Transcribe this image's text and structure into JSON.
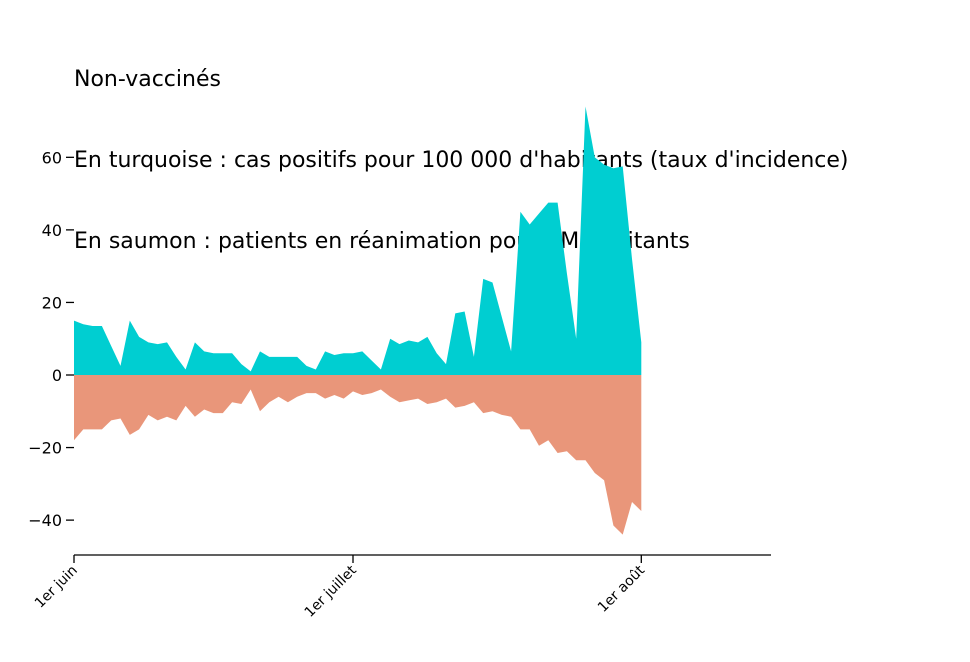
{
  "chart_data": {
    "type": "area",
    "title_lines": [
      "Non-vaccinés",
      "En turquoise : cas positifs pour 100 000 d'habitants (taux d'incidence)",
      "En saumon : patients en réanimation pour 1M habitants"
    ],
    "xlabel": "",
    "ylabel": "",
    "ylim": [
      -49.6,
      74.5
    ],
    "xlim_days": [
      0,
      75
    ],
    "yticks": [
      {
        "value": 60,
        "label": "60"
      },
      {
        "value": 40,
        "label": "40"
      },
      {
        "value": 20,
        "label": "20"
      },
      {
        "value": 0,
        "label": "0"
      },
      {
        "value": -20,
        "label": "−20"
      },
      {
        "value": -40,
        "label": "−40"
      }
    ],
    "xticks": [
      {
        "day": 0,
        "label": "1er juin"
      },
      {
        "day": 30,
        "label": "1er juillet"
      },
      {
        "day": 61,
        "label": "1er août"
      }
    ],
    "grid": false,
    "legend": "none",
    "series": [
      {
        "key": "cas",
        "color": "#00ced1",
        "values": [
          15.0,
          14.0,
          13.5,
          13.5,
          8.0,
          2.5,
          15.0,
          10.5,
          9.0,
          8.5,
          9.0,
          5.0,
          1.5,
          9.0,
          6.5,
          6.0,
          6.0,
          6.0,
          3.0,
          1.0,
          6.5,
          5.0,
          5.0,
          5.0,
          5.0,
          2.5,
          1.5,
          6.5,
          5.5,
          6.0,
          6.0,
          6.5,
          4.0,
          1.5,
          10.0,
          8.5,
          9.5,
          9.0,
          10.5,
          6.0,
          3.0,
          17.0,
          17.5,
          5.0,
          26.5,
          25.5,
          16.0,
          6.5,
          45.0,
          41.5,
          44.5,
          47.5,
          47.5,
          28.0,
          10.0,
          74.0,
          60.0,
          58.0,
          57.0,
          57.5,
          32.0,
          9.0
        ]
      },
      {
        "key": "rea",
        "color": "#e9967a",
        "values": [
          -18.0,
          -15.0,
          -15.0,
          -15.0,
          -12.5,
          -12.0,
          -16.5,
          -15.0,
          -11.0,
          -12.5,
          -11.5,
          -12.5,
          -8.5,
          -11.5,
          -9.5,
          -10.5,
          -10.5,
          -7.5,
          -8.0,
          -4.0,
          -10.0,
          -7.5,
          -6.0,
          -7.5,
          -6.0,
          -5.0,
          -5.0,
          -6.5,
          -5.5,
          -6.5,
          -4.5,
          -5.5,
          -5.0,
          -4.0,
          -6.0,
          -7.5,
          -7.0,
          -6.5,
          -8.0,
          -7.5,
          -6.5,
          -9.0,
          -8.5,
          -7.5,
          -10.5,
          -10.0,
          -11.0,
          -11.5,
          -15.0,
          -15.0,
          -19.5,
          -18.0,
          -21.5,
          -21.0,
          -23.5,
          -23.5,
          -27.0,
          -29.0,
          -41.5,
          -44.0,
          -35.0,
          -37.5
        ]
      }
    ]
  }
}
